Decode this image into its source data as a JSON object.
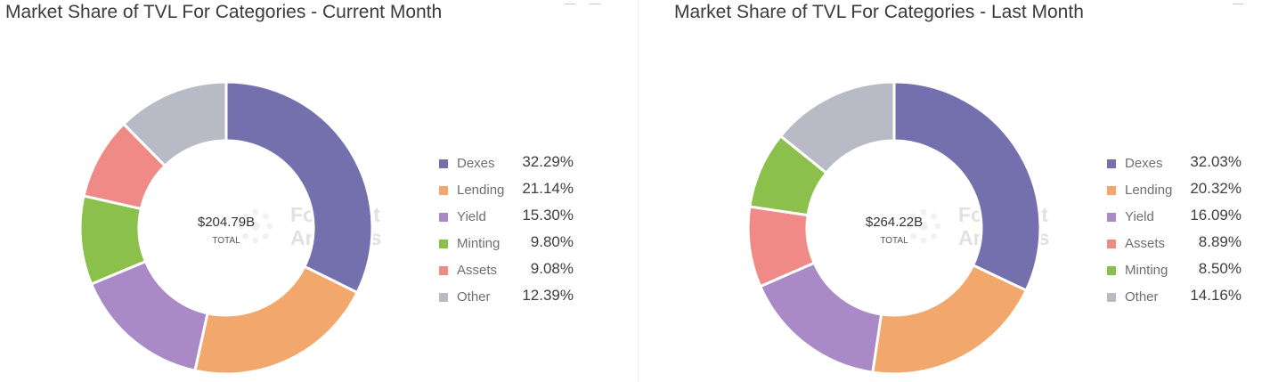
{
  "chart_data": [
    {
      "type": "pie",
      "title": "Market Share of TVL For Categories - Current Month",
      "center_value": "$204.79B",
      "center_label": "TOTAL",
      "watermark": [
        "Footprint",
        "Analytics"
      ],
      "slices": [
        {
          "label": "Dexes",
          "value": 32.29,
          "value_label": "32.29%",
          "color": "#7470ae"
        },
        {
          "label": "Lending",
          "value": 21.14,
          "value_label": "21.14%",
          "color": "#f2a86d"
        },
        {
          "label": "Yield",
          "value": 15.3,
          "value_label": "15.30%",
          "color": "#a98ac7"
        },
        {
          "label": "Minting",
          "value": 9.8,
          "value_label": "9.80%",
          "color": "#8bc04c"
        },
        {
          "label": "Assets",
          "value": 9.08,
          "value_label": "9.08%",
          "color": "#f08a87"
        },
        {
          "label": "Other",
          "value": 12.39,
          "value_label": "12.39%",
          "color": "#b8bbc5"
        }
      ],
      "legend_position": "right"
    },
    {
      "type": "pie",
      "title": "Market Share of TVL For Categories - Last Month",
      "center_value": "$264.22B",
      "center_label": "TOTAL",
      "watermark": [
        "Footprint",
        "Analytics"
      ],
      "slices": [
        {
          "label": "Dexes",
          "value": 32.03,
          "value_label": "32.03%",
          "color": "#7470ae"
        },
        {
          "label": "Lending",
          "value": 20.32,
          "value_label": "20.32%",
          "color": "#f2a86d"
        },
        {
          "label": "Yield",
          "value": 16.09,
          "value_label": "16.09%",
          "color": "#a98ac7"
        },
        {
          "label": "Assets",
          "value": 8.89,
          "value_label": "8.89%",
          "color": "#f08a87"
        },
        {
          "label": "Minting",
          "value": 8.5,
          "value_label": "8.50%",
          "color": "#8bc04c"
        },
        {
          "label": "Other",
          "value": 14.16,
          "value_label": "14.16%",
          "color": "#b8bbc5"
        }
      ],
      "legend_position": "right"
    }
  ],
  "icons": [
    "minimize-icon",
    "fullscreen-icon"
  ]
}
